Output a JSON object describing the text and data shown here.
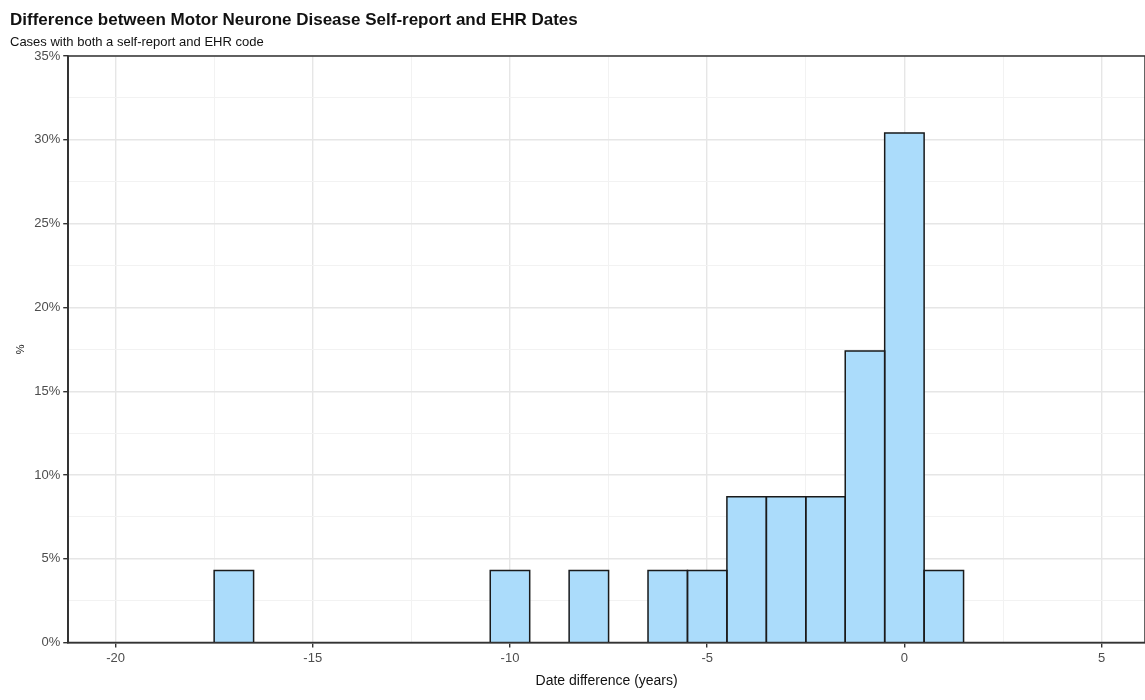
{
  "chart_data": {
    "type": "histogram",
    "title": "Difference between Motor Neurone Disease Self-report and EHR Dates",
    "subtitle": "Cases with both a self-report and EHR code",
    "xlabel": "Date difference (years)",
    "ylabel": "%",
    "bins": [
      -17.5,
      -16.5,
      -15.5,
      -14.5,
      -13.5,
      -12.5,
      -11.5,
      -10.5,
      -9.5,
      -8.5,
      -7.5,
      -6.5,
      -5.5,
      -4.5,
      -3.5,
      -2.5,
      -1.5,
      -0.5,
      0.5,
      1.5
    ],
    "values": [
      4.3,
      0,
      0,
      0,
      0,
      0,
      0,
      4.3,
      0,
      4.3,
      0,
      4.3,
      4.3,
      8.7,
      8.7,
      8.7,
      17.4,
      30.4,
      4.3
    ],
    "color": "#abdcfb",
    "xlim": [
      -21.2,
      6.1
    ],
    "xticks": [
      -20,
      {
        "value": -17.5,
        "label": null
      },
      -15,
      {
        "value": -12.5,
        "label": null
      },
      -10,
      {
        "value": -7.5,
        "label": null
      },
      -5,
      {
        "value": -2.5,
        "label": null
      },
      0,
      {
        "value": 2.5,
        "label": null
      },
      5
    ],
    "ylim": [
      0,
      35
    ],
    "yticks": [
      {
        "value": 0,
        "label": "0%"
      },
      {
        "value": 2.5,
        "label": null
      },
      {
        "value": 5,
        "label": "5%"
      },
      {
        "value": 7.5,
        "label": null
      },
      {
        "value": 10,
        "label": "10%"
      },
      {
        "value": 12.5,
        "label": null
      },
      {
        "value": 15,
        "label": "15%"
      },
      {
        "value": 17.5,
        "label": null
      },
      {
        "value": 20,
        "label": "20%"
      },
      {
        "value": 22.5,
        "label": null
      },
      {
        "value": 25,
        "label": "25%"
      },
      {
        "value": 27.5,
        "label": null
      },
      {
        "value": 30,
        "label": "30%"
      },
      {
        "value": 32.5,
        "label": null
      },
      {
        "value": 35,
        "label": "35%"
      }
    ],
    "grid": true,
    "legend": false
  }
}
